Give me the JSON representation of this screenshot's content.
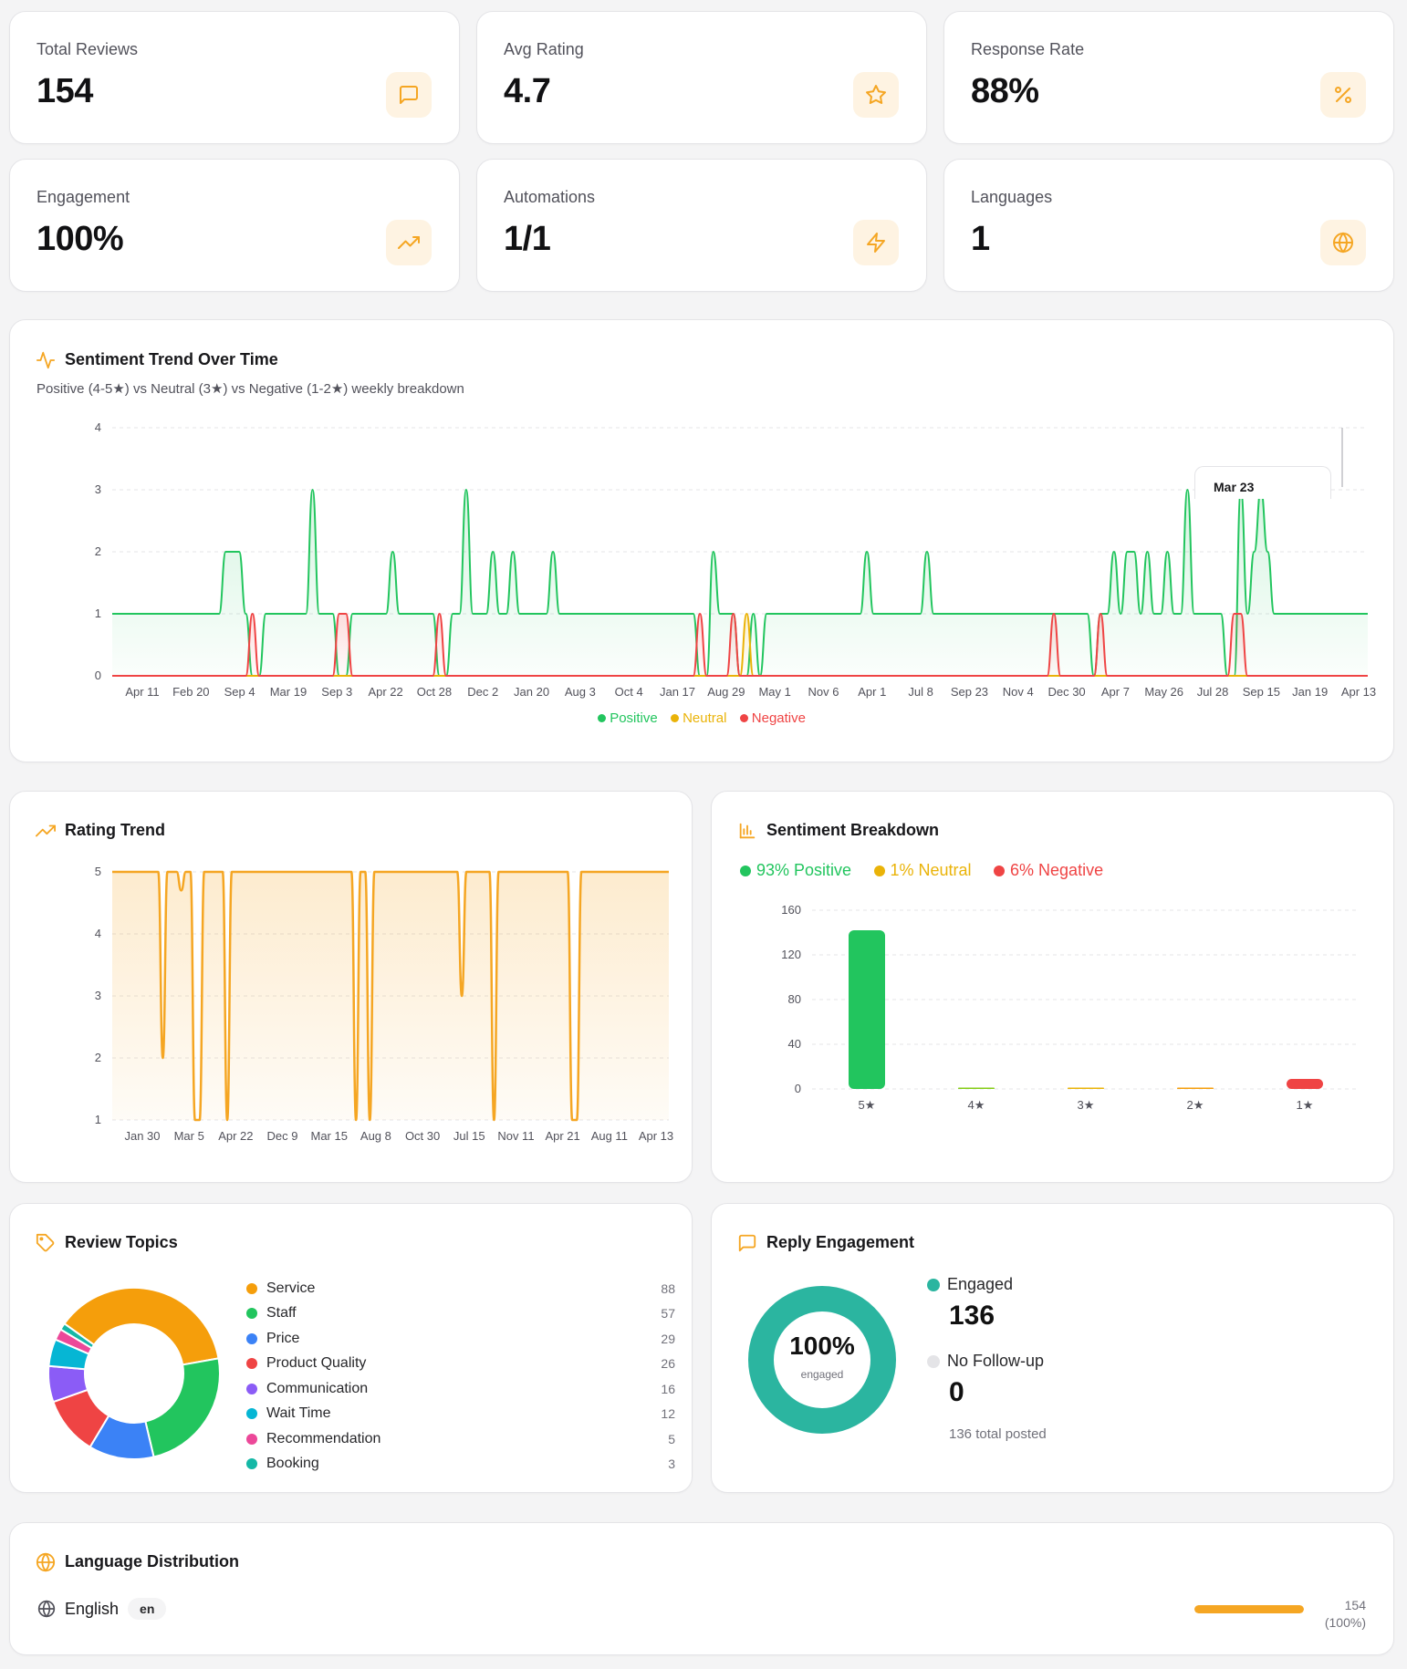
{
  "stats": [
    {
      "label": "Total Reviews",
      "value": "154",
      "icon": "message-square-icon"
    },
    {
      "label": "Avg Rating",
      "value": "4.7",
      "icon": "star-icon"
    },
    {
      "label": "Response Rate",
      "value": "88%",
      "icon": "percent-icon"
    },
    {
      "label": "Engagement",
      "value": "100%",
      "icon": "trending-up-icon"
    },
    {
      "label": "Automations",
      "value": "1/1",
      "icon": "zap-icon"
    },
    {
      "label": "Languages",
      "value": "1",
      "icon": "globe-icon"
    }
  ],
  "accent": "#f5a623",
  "sentiment_trend": {
    "title": "Sentiment Trend Over Time",
    "subtitle": "Positive (4-5★) vs Neutral (3★) vs Negative (1-2★) weekly breakdown",
    "tooltip_label": "Mar 23",
    "legend": [
      {
        "name": "Positive",
        "color": "#22c55e"
      },
      {
        "name": "Neutral",
        "color": "#eab308"
      },
      {
        "name": "Negative",
        "color": "#ef4444"
      }
    ]
  },
  "rating_trend": {
    "title": "Rating Trend"
  },
  "sentiment_breakdown": {
    "title": "Sentiment Breakdown",
    "summary": [
      {
        "label": "93% Positive",
        "color": "#22c55e"
      },
      {
        "label": "1% Neutral",
        "color": "#eab308"
      },
      {
        "label": "6% Negative",
        "color": "#ef4444"
      }
    ]
  },
  "review_topics": {
    "title": "Review Topics",
    "topics": [
      {
        "name": "Service",
        "count": "88",
        "color": "#f59e0b"
      },
      {
        "name": "Staff",
        "count": "57",
        "color": "#22c55e"
      },
      {
        "name": "Price",
        "count": "29",
        "color": "#3b82f6"
      },
      {
        "name": "Product Quality",
        "count": "26",
        "color": "#ef4444"
      },
      {
        "name": "Communication",
        "count": "16",
        "color": "#8b5cf6"
      },
      {
        "name": "Wait Time",
        "count": "12",
        "color": "#06b6d4"
      },
      {
        "name": "Recommendation",
        "count": "5",
        "color": "#ec4899"
      },
      {
        "name": "Booking",
        "count": "3",
        "color": "#14b8a6"
      }
    ]
  },
  "reply_engagement": {
    "title": "Reply Engagement",
    "percent": "100%",
    "percent_caption": "engaged",
    "engaged_label": "Engaged",
    "engaged_value": "136",
    "nofollow_label": "No Follow-up",
    "nofollow_value": "0",
    "total": "136 total posted",
    "engaged_color": "#2bb5a0",
    "nofollow_color": "#e4e4e7"
  },
  "language_distribution": {
    "title": "Language Distribution",
    "languages": [
      {
        "name": "English",
        "code": "en",
        "count": "154",
        "share": "(100%)",
        "fraction": 1.0
      }
    ]
  },
  "chart_data": [
    {
      "type": "line",
      "title": "Sentiment Trend Over Time",
      "ylim": [
        0,
        4
      ],
      "yticks": [
        "0",
        "1",
        "2",
        "3",
        "4"
      ],
      "xticks": [
        "Apr 11",
        "Feb 20",
        "Sep 4",
        "Mar 19",
        "Sep 3",
        "Apr 22",
        "Oct 28",
        "Dec 2",
        "Jan 20",
        "Aug 3",
        "Oct 4",
        "Jan 17",
        "Aug 29",
        "May 1",
        "Nov 6",
        "Apr 1",
        "Jul 8",
        "Sep 23",
        "Nov 4",
        "Dec 30",
        "Apr 7",
        "May 26",
        "Jul 28",
        "Sep 15",
        "Jan 19",
        "Apr 13"
      ],
      "series": [
        {
          "name": "Positive",
          "values": [
            1,
            1,
            1,
            1,
            1,
            1,
            1,
            1,
            1,
            1,
            1,
            1,
            1,
            1,
            1,
            1,
            1,
            2,
            2,
            2,
            1,
            0,
            0,
            1,
            1,
            1,
            1,
            1,
            1,
            1,
            3,
            1,
            1,
            1,
            0,
            0,
            1,
            1,
            1,
            1,
            1,
            1,
            2,
            1,
            1,
            1,
            1,
            1,
            1,
            0,
            0,
            1,
            1,
            3,
            1,
            1,
            1,
            2,
            1,
            1,
            2,
            1,
            1,
            1,
            1,
            1,
            2,
            1,
            1,
            1,
            1,
            1,
            1,
            1,
            1,
            1,
            1,
            1,
            1,
            1,
            1,
            1,
            1,
            1,
            1,
            1,
            1,
            1,
            0,
            0,
            2,
            1,
            1,
            1,
            0,
            0,
            1,
            0,
            1,
            1,
            1,
            1,
            1,
            1,
            1,
            1,
            1,
            1,
            1,
            1,
            1,
            1,
            1,
            2,
            1,
            1,
            1,
            1,
            1,
            1,
            1,
            1,
            2,
            1,
            1,
            1,
            1,
            1,
            1,
            1,
            1,
            1,
            1,
            1,
            1,
            1,
            1,
            1,
            1,
            1,
            1,
            1,
            1,
            1,
            1,
            1,
            1,
            0,
            1,
            1,
            2,
            1,
            2,
            2,
            1,
            2,
            1,
            1,
            2,
            1,
            1,
            3,
            1,
            1,
            1,
            1,
            1,
            0,
            0,
            3,
            1,
            2,
            3,
            2,
            1,
            1,
            1,
            1,
            1,
            1,
            1,
            1,
            1,
            1,
            1,
            1,
            1,
            1,
            1
          ]
        },
        {
          "name": "Neutral",
          "values": [
            0,
            0,
            0,
            0,
            0,
            0,
            0,
            0,
            0,
            0,
            0,
            0,
            0,
            0,
            0,
            0,
            0,
            0,
            0,
            0,
            0,
            0,
            0,
            0,
            0,
            0,
            0,
            0,
            0,
            0,
            0,
            0,
            0,
            0,
            0,
            0,
            0,
            0,
            0,
            0,
            0,
            0,
            0,
            0,
            0,
            0,
            0,
            0,
            0,
            0,
            0,
            0,
            0,
            0,
            0,
            0,
            0,
            0,
            0,
            0,
            0,
            0,
            0,
            0,
            0,
            0,
            0,
            0,
            0,
            0,
            0,
            0,
            0,
            0,
            0,
            0,
            0,
            0,
            0,
            0,
            0,
            0,
            0,
            0,
            0,
            0,
            0,
            0,
            0,
            0,
            0,
            0,
            0,
            0,
            0,
            1,
            0,
            0,
            0,
            0,
            0,
            0,
            0,
            0,
            0,
            0,
            0,
            0,
            0,
            0,
            0,
            0,
            0,
            0,
            0,
            0,
            0,
            0,
            0,
            0,
            0,
            0,
            0,
            0,
            0,
            0,
            0,
            0,
            0,
            0,
            0,
            0,
            0,
            0,
            0,
            0,
            0,
            0,
            0,
            0,
            0,
            0,
            0,
            0,
            0,
            0,
            0,
            0,
            0,
            0,
            0,
            0,
            0,
            0,
            0,
            0,
            0,
            0,
            0,
            0,
            0,
            0,
            0,
            0,
            0,
            0,
            0,
            0,
            0,
            0,
            0,
            0,
            0,
            0,
            0,
            0,
            0,
            0,
            0,
            0,
            0,
            0,
            0,
            0,
            0,
            0,
            0,
            0,
            0
          ]
        },
        {
          "name": "Negative",
          "values": [
            0,
            0,
            0,
            0,
            0,
            0,
            0,
            0,
            0,
            0,
            0,
            0,
            0,
            0,
            0,
            0,
            0,
            0,
            0,
            0,
            0,
            1,
            0,
            0,
            0,
            0,
            0,
            0,
            0,
            0,
            0,
            0,
            0,
            0,
            1,
            1,
            0,
            0,
            0,
            0,
            0,
            0,
            0,
            0,
            0,
            0,
            0,
            0,
            0,
            1,
            0,
            0,
            0,
            0,
            0,
            0,
            0,
            0,
            0,
            0,
            0,
            0,
            0,
            0,
            0,
            0,
            0,
            0,
            0,
            0,
            0,
            0,
            0,
            0,
            0,
            0,
            0,
            0,
            0,
            0,
            0,
            0,
            0,
            0,
            0,
            0,
            0,
            0,
            1,
            0,
            0,
            0,
            0,
            1,
            0,
            0,
            0,
            0,
            0,
            0,
            0,
            0,
            0,
            0,
            0,
            0,
            0,
            0,
            0,
            0,
            0,
            0,
            0,
            0,
            0,
            0,
            0,
            0,
            0,
            0,
            0,
            0,
            0,
            0,
            0,
            0,
            0,
            0,
            0,
            0,
            0,
            0,
            0,
            0,
            0,
            0,
            0,
            0,
            0,
            0,
            0,
            1,
            0,
            0,
            0,
            0,
            0,
            0,
            1,
            0,
            0,
            0,
            0,
            0,
            0,
            0,
            0,
            0,
            0,
            0,
            0,
            0,
            0,
            0,
            0,
            0,
            0,
            0,
            1,
            1,
            0,
            0,
            0,
            0,
            0,
            0,
            0,
            0,
            0,
            0,
            0,
            0,
            0,
            0,
            0,
            0,
            0,
            0,
            0
          ]
        }
      ]
    },
    {
      "type": "area",
      "title": "Rating Trend",
      "ylim": [
        1,
        5
      ],
      "yticks": [
        "1",
        "2",
        "3",
        "4",
        "5"
      ],
      "xticks": [
        "Jan 30",
        "Mar 5",
        "Apr 22",
        "Dec 9",
        "Mar 15",
        "Aug 8",
        "Oct 30",
        "Jul 15",
        "Nov 11",
        "Apr 21",
        "Aug 11",
        "Apr 13"
      ],
      "series": [
        {
          "name": "Rating",
          "values": [
            5,
            5,
            5,
            5,
            5,
            5,
            5,
            5,
            5,
            5,
            5,
            2,
            5,
            5,
            5,
            4.7,
            5,
            5,
            1,
            1,
            5,
            5,
            5,
            5,
            5,
            1,
            5,
            5,
            5,
            5,
            5,
            5,
            5,
            5,
            5,
            5,
            5,
            5,
            5,
            5,
            5,
            5,
            5,
            5,
            5,
            5,
            5,
            5,
            5,
            5,
            5,
            5,
            5,
            1,
            5,
            5,
            1,
            5,
            5,
            5,
            5,
            5,
            5,
            5,
            5,
            5,
            5,
            5,
            5,
            5,
            5,
            5,
            5,
            5,
            5,
            5,
            3,
            5,
            5,
            5,
            5,
            5,
            5,
            1,
            5,
            5,
            5,
            5,
            5,
            5,
            5,
            5,
            5,
            5,
            5,
            5,
            5,
            5,
            5,
            5,
            1,
            1,
            5,
            5,
            5,
            5,
            5,
            5,
            5,
            5,
            5,
            5,
            5,
            5,
            5,
            5,
            5,
            5,
            5,
            5,
            5,
            5
          ]
        }
      ]
    },
    {
      "type": "bar",
      "title": "Sentiment Breakdown",
      "categories": [
        "5★",
        "4★",
        "3★",
        "2★",
        "1★"
      ],
      "values": [
        142,
        1,
        1,
        1,
        9
      ],
      "colors": [
        "#22c55e",
        "#84cc16",
        "#eab308",
        "#f59e0b",
        "#ef4444"
      ],
      "ylim": [
        0,
        160
      ],
      "yticks": [
        "0",
        "40",
        "80",
        "120",
        "160"
      ]
    },
    {
      "type": "pie",
      "title": "Review Topics",
      "categories": [
        "Service",
        "Staff",
        "Price",
        "Product Quality",
        "Communication",
        "Wait Time",
        "Recommendation",
        "Booking"
      ],
      "values": [
        88,
        57,
        29,
        26,
        16,
        12,
        5,
        3
      ]
    }
  ]
}
